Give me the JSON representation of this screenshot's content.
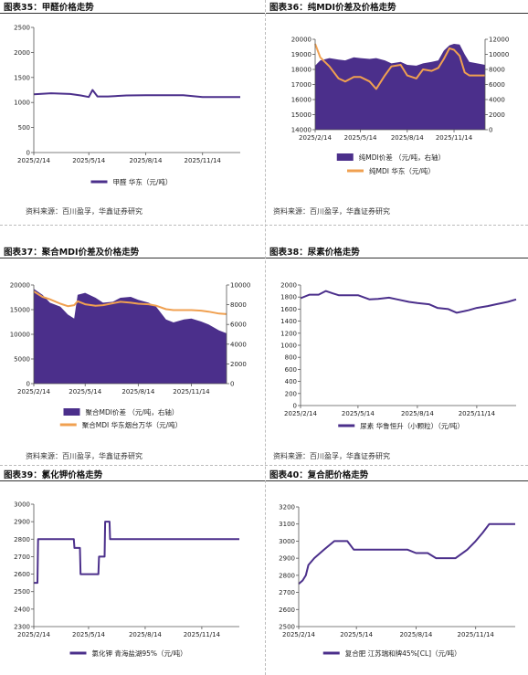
{
  "charts": [
    {
      "title": "图表35：甲醛价格走势",
      "source": "资料来源：百川盈孚，华鑫证券研究",
      "chart_data": {
        "type": "line",
        "x_ticks": [
          "2025/2/14",
          "2025/5/14",
          "2025/8/14",
          "2025/11/14"
        ],
        "x": [
          "2025/2/14",
          "2025/3/14",
          "2025/4/14",
          "2025/5/1",
          "2025/5/14",
          "2025/5/20",
          "2025/5/28",
          "2025/6/14",
          "2025/7/14",
          "2025/8/14",
          "2025/9/14",
          "2025/10/14",
          "2025/11/14",
          "2025/12/14",
          "2026/1/14"
        ],
        "ylim": [
          0,
          2500
        ],
        "y_ticks": [
          0,
          500,
          1000,
          1500,
          2000,
          2500
        ],
        "series": [
          {
            "name": "甲醛 华东（元/吨）",
            "color": "#4b2f8b",
            "values": [
              1165,
              1185,
              1170,
              1140,
              1110,
              1250,
              1120,
              1120,
              1140,
              1145,
              1145,
              1145,
              1110,
              1110,
              1110
            ]
          }
        ],
        "legend": "bottom"
      }
    },
    {
      "title": "图表36：纯MDI价差及价格走势",
      "source": "资料来源：百川盈孚，华鑫证券研究",
      "chart_data": {
        "type": "area+line",
        "x_ticks": [
          "2025/2/14",
          "2025/5/14",
          "2025/8/14",
          "2025/11/14"
        ],
        "x": [
          "2025/2/14",
          "2025/2/24",
          "2025/3/14",
          "2025/4/1",
          "2025/4/14",
          "2025/5/1",
          "2025/5/14",
          "2025/6/1",
          "2025/6/14",
          "2025/7/1",
          "2025/7/14",
          "2025/8/1",
          "2025/8/14",
          "2025/9/1",
          "2025/9/14",
          "2025/10/1",
          "2025/10/14",
          "2025/10/25",
          "2025/11/5",
          "2025/11/14",
          "2025/11/25",
          "2025/12/5",
          "2025/12/14",
          "2026/1/14"
        ],
        "ylim_left": [
          14000,
          20000
        ],
        "y_ticks_left": [
          14000,
          15000,
          16000,
          17000,
          18000,
          19000,
          20000
        ],
        "ylim_right": [
          0,
          12000
        ],
        "y_ticks_right": [
          0,
          2000,
          4000,
          6000,
          8000,
          10000,
          12000
        ],
        "series": [
          {
            "name": "纯MDI价差 （元/吨，右轴）",
            "axis": "right",
            "kind": "area",
            "color": "#4b2f8b",
            "values": [
              8500,
              9200,
              9500,
              9300,
              9200,
              9600,
              9500,
              9400,
              9500,
              9200,
              8800,
              9000,
              8600,
              8500,
              8800,
              9000,
              9200,
              10500,
              11200,
              11400,
              11300,
              10000,
              9000,
              8600
            ]
          },
          {
            "name": "纯MDI 华东（元/吨）",
            "axis": "left",
            "kind": "line",
            "color": "#f0a050",
            "values": [
              19700,
              18800,
              18200,
              17400,
              17200,
              17500,
              17500,
              17200,
              16700,
              17600,
              18200,
              18300,
              17600,
              17400,
              18000,
              17900,
              18100,
              18700,
              19400,
              19300,
              18900,
              17800,
              17600,
              17600
            ]
          }
        ],
        "legend": "bottom"
      }
    },
    {
      "title": "图表37：聚合MDI价差及价格走势",
      "source": "资料来源：百川盈孚，华鑫证券研究",
      "chart_data": {
        "type": "area+line",
        "x_ticks": [
          "2025/2/14",
          "2025/5/14",
          "2025/8/14",
          "2025/11/14"
        ],
        "x": [
          "2025/2/14",
          "2025/3/1",
          "2025/3/14",
          "2025/4/1",
          "2025/4/14",
          "2025/4/25",
          "2025/5/1",
          "2025/5/14",
          "2025/6/1",
          "2025/6/14",
          "2025/7/1",
          "2025/7/14",
          "2025/8/1",
          "2025/8/14",
          "2025/9/1",
          "2025/9/14",
          "2025/10/1",
          "2025/10/14",
          "2025/11/1",
          "2025/11/14",
          "2025/12/1",
          "2025/12/14",
          "2026/1/1",
          "2026/1/14"
        ],
        "ylim_left": [
          0,
          20000
        ],
        "y_ticks_left": [
          0,
          5000,
          10000,
          15000,
          20000
        ],
        "ylim_right": [
          0,
          10000
        ],
        "y_ticks_right": [
          0,
          2000,
          4000,
          6000,
          8000,
          10000
        ],
        "series": [
          {
            "name": "聚合MDI价差 （元/吨，右轴）",
            "axis": "right",
            "kind": "area",
            "color": "#4b2f8b",
            "values": [
              9600,
              9000,
              8200,
              7800,
              7000,
              6600,
              9000,
              9200,
              8700,
              8200,
              8300,
              8700,
              8800,
              8500,
              8200,
              7800,
              6500,
              6200,
              6500,
              6600,
              6300,
              6000,
              5400,
              5100
            ]
          },
          {
            "name": "聚合MDI 华东烟台万华（元/吨）",
            "axis": "left",
            "kind": "line",
            "color": "#f0a050",
            "values": [
              18700,
              17600,
              17100,
              16200,
              15700,
              15900,
              16700,
              16100,
              15800,
              15900,
              16300,
              16600,
              16400,
              16200,
              16100,
              15800,
              15100,
              14900,
              14900,
              14900,
              14800,
              14600,
              14200,
              14100
            ]
          }
        ],
        "legend": "bottom"
      }
    },
    {
      "title": "图表38：尿素价格走势",
      "source": "资料来源：百川盈孚，华鑫证券研究",
      "chart_data": {
        "type": "line",
        "x_ticks": [
          "2025/2/14",
          "2025/5/14",
          "2025/8/14",
          "2025/11/14"
        ],
        "x": [
          "2025/2/14",
          "2025/2/28",
          "2025/3/14",
          "2025/3/25",
          "2025/4/5",
          "2025/4/14",
          "2025/5/1",
          "2025/5/14",
          "2025/6/1",
          "2025/6/14",
          "2025/7/1",
          "2025/7/14",
          "2025/8/1",
          "2025/8/14",
          "2025/9/1",
          "2025/9/14",
          "2025/10/1",
          "2025/10/14",
          "2025/11/1",
          "2025/11/14",
          "2025/12/1",
          "2025/12/14",
          "2026/1/1",
          "2026/1/14"
        ],
        "ylim": [
          0,
          2000
        ],
        "y_ticks": [
          0,
          200,
          400,
          600,
          800,
          1000,
          1200,
          1400,
          1600,
          1800,
          2000
        ],
        "series": [
          {
            "name": "尿素 华鲁恒升（小颗粒）（元/吨）",
            "color": "#4b2f8b",
            "values": [
              1780,
              1840,
              1840,
              1900,
              1860,
              1830,
              1830,
              1830,
              1760,
              1770,
              1790,
              1760,
              1720,
              1700,
              1680,
              1620,
              1600,
              1540,
              1580,
              1620,
              1650,
              1680,
              1720,
              1760
            ]
          }
        ],
        "legend": "bottom"
      }
    },
    {
      "title": "图表39：氯化钾价格走势",
      "source": "",
      "chart_data": {
        "type": "line",
        "x_ticks": [
          "2025/2/14",
          "2025/5/14",
          "2025/8/14",
          "2025/11/14"
        ],
        "x": [
          "2025/2/14",
          "2025/2/20",
          "2025/2/21",
          "2025/4/20",
          "2025/4/21",
          "2025/4/30",
          "2025/5/1",
          "2025/5/30",
          "2025/5/31",
          "2025/6/9",
          "2025/6/10",
          "2025/6/17",
          "2025/6/18",
          "2026/1/14"
        ],
        "ylim": [
          2300,
          3000
        ],
        "y_ticks": [
          2300,
          2400,
          2500,
          2600,
          2700,
          2800,
          2900,
          3000
        ],
        "series": [
          {
            "name": "氯化钾 青海盐湖95%（元/吨）",
            "color": "#4b2f8b",
            "values": [
              2550,
              2550,
              2800,
              2800,
              2750,
              2750,
              2600,
              2600,
              2700,
              2700,
              2900,
              2900,
              2800,
              2800
            ]
          }
        ],
        "legend": "bottom"
      }
    },
    {
      "title": "图表40：复合肥价格走势",
      "source": "",
      "chart_data": {
        "type": "line",
        "x_ticks": [
          "2025/2/14",
          "2025/5/14",
          "2025/8/14",
          "2025/11/14"
        ],
        "x": [
          "2025/2/14",
          "2025/2/20",
          "2025/2/25",
          "2025/3/1",
          "2025/3/10",
          "2025/3/25",
          "2025/4/10",
          "2025/4/30",
          "2025/5/10",
          "2025/6/14",
          "2025/7/14",
          "2025/8/1",
          "2025/8/14",
          "2025/9/1",
          "2025/9/14",
          "2025/10/14",
          "2025/11/1",
          "2025/11/14",
          "2025/11/25",
          "2025/12/5",
          "2025/12/14",
          "2026/1/14"
        ],
        "ylim": [
          2500,
          3200
        ],
        "y_ticks": [
          2500,
          2600,
          2700,
          2800,
          2900,
          3000,
          3100,
          3200
        ],
        "series": [
          {
            "name": "复合肥 江苏瑞和牌45%[CL]（元/吨）",
            "color": "#4b2f8b",
            "values": [
              2750,
              2770,
              2800,
              2860,
              2900,
              2950,
              3000,
              3000,
              2950,
              2950,
              2950,
              2950,
              2930,
              2930,
              2900,
              2900,
              2950,
              3000,
              3050,
              3100,
              3100,
              3100
            ]
          }
        ],
        "legend": "bottom"
      }
    }
  ]
}
